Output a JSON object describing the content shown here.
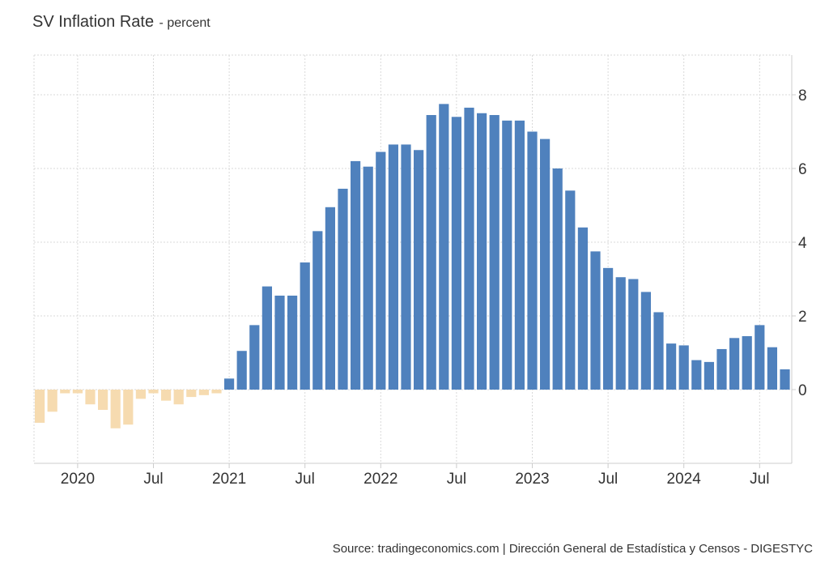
{
  "title": "SV Inflation Rate",
  "unit": "- percent",
  "source": "Source: tradingeconomics.com | Dirección General de Estadística y Censos - DIGESTYC",
  "colors": {
    "positive": "#4f81bd",
    "negative": "#f6dbb0",
    "grid": "#d9d9d9",
    "axis": "#cccccc",
    "text": "#333333"
  },
  "chart_data": {
    "type": "bar",
    "title": "SV Inflation Rate",
    "ylabel": "percent",
    "xlabel": "",
    "ylim": [
      -2,
      9
    ],
    "y_ticks": [
      0,
      2,
      4,
      6,
      8
    ],
    "x_ticks": [
      {
        "label": "2020",
        "index": 3
      },
      {
        "label": "Jul",
        "index": 9
      },
      {
        "label": "2021",
        "index": 15
      },
      {
        "label": "Jul",
        "index": 21
      },
      {
        "label": "2022",
        "index": 27
      },
      {
        "label": "Jul",
        "index": 33
      },
      {
        "label": "2023",
        "index": 39
      },
      {
        "label": "Jul",
        "index": 45
      },
      {
        "label": "2024",
        "index": 51
      },
      {
        "label": "Jul",
        "index": 57
      }
    ],
    "categories": [
      "2019-10",
      "2019-11",
      "2019-12",
      "2020-01",
      "2020-02",
      "2020-03",
      "2020-04",
      "2020-05",
      "2020-06",
      "2020-07",
      "2020-08",
      "2020-09",
      "2020-10",
      "2020-11",
      "2020-12",
      "2021-01",
      "2021-02",
      "2021-03",
      "2021-04",
      "2021-05",
      "2021-06",
      "2021-07",
      "2021-08",
      "2021-09",
      "2021-10",
      "2021-11",
      "2021-12",
      "2022-01",
      "2022-02",
      "2022-03",
      "2022-04",
      "2022-05",
      "2022-06",
      "2022-07",
      "2022-08",
      "2022-09",
      "2022-10",
      "2022-11",
      "2022-12",
      "2023-01",
      "2023-02",
      "2023-03",
      "2023-04",
      "2023-05",
      "2023-06",
      "2023-07",
      "2023-08",
      "2023-09",
      "2023-10",
      "2023-11",
      "2023-12",
      "2024-01",
      "2024-02",
      "2024-03",
      "2024-04",
      "2024-05",
      "2024-06",
      "2024-07",
      "2024-08",
      "2024-09"
    ],
    "values": [
      -0.9,
      -0.6,
      -0.1,
      -0.1,
      -0.4,
      -0.55,
      -1.05,
      -0.95,
      -0.25,
      -0.1,
      -0.3,
      -0.4,
      -0.2,
      -0.15,
      -0.1,
      0.3,
      1.05,
      1.75,
      2.8,
      2.55,
      2.55,
      3.45,
      4.3,
      4.95,
      5.45,
      6.2,
      6.05,
      6.45,
      6.65,
      6.65,
      6.5,
      7.45,
      7.75,
      7.4,
      7.65,
      7.5,
      7.45,
      7.3,
      7.3,
      7.0,
      6.8,
      6.0,
      5.4,
      4.4,
      3.75,
      3.3,
      3.05,
      3.0,
      2.65,
      2.1,
      1.25,
      1.2,
      0.8,
      0.75,
      1.1,
      1.4,
      1.45,
      1.75,
      1.15,
      0.55
    ]
  }
}
